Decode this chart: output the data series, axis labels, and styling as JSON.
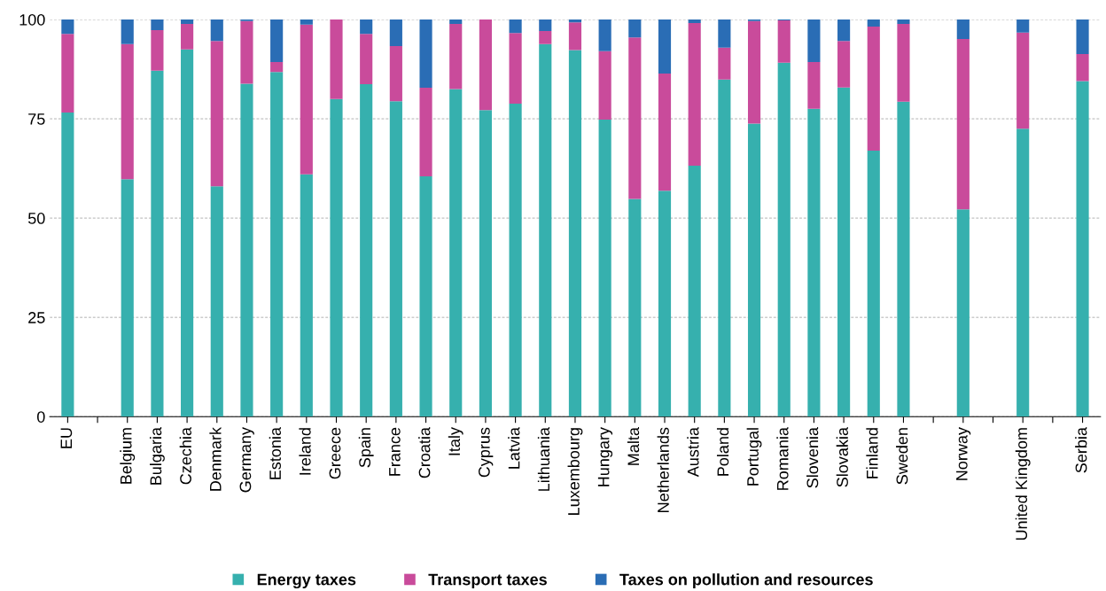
{
  "chart_data": {
    "type": "bar",
    "stacked": true,
    "categories": [
      "EU",
      null,
      "Belgium",
      "Bulgaria",
      "Czechia",
      "Denmark",
      "Germany",
      "Estonia",
      "Ireland",
      "Greece",
      "Spain",
      "France",
      "Croatia",
      "Italy",
      "Cyprus",
      "Latvia",
      "Lithuania",
      "Luxembourg",
      "Hungary",
      "Malta",
      "Netherlands",
      "Austria",
      "Poland",
      "Portugal",
      "Romania",
      "Slovenia",
      "Slovakia",
      "Finland",
      "Sweden",
      null,
      "Norway",
      null,
      "United Kingdom",
      null,
      "Serbia"
    ],
    "series": [
      {
        "name": "Energy taxes",
        "color": "#36b0ae",
        "values": [
          76.6,
          null,
          59.8,
          87.1,
          92.5,
          58.0,
          83.8,
          86.8,
          61.0,
          80.0,
          83.7,
          79.4,
          60.5,
          82.5,
          77.2,
          78.8,
          93.8,
          92.3,
          74.8,
          54.8,
          56.9,
          63.2,
          84.9,
          73.8,
          89.1,
          77.5,
          82.9,
          67.0,
          79.3,
          null,
          52.2,
          null,
          72.5,
          null,
          84.5
        ]
      },
      {
        "name": "Transport taxes",
        "color": "#c94b9b",
        "values": [
          19.8,
          null,
          34.0,
          10.2,
          6.4,
          36.6,
          15.8,
          2.5,
          37.7,
          20.0,
          12.7,
          13.9,
          22.3,
          16.4,
          22.8,
          17.8,
          3.3,
          7.0,
          17.2,
          40.7,
          29.5,
          35.9,
          8.0,
          25.8,
          10.7,
          11.8,
          11.7,
          31.2,
          19.6,
          null,
          42.9,
          null,
          24.2,
          null,
          6.8
        ]
      },
      {
        "name": "Taxes on pollution and resources",
        "color": "#2a6db5",
        "values": [
          3.6,
          null,
          6.2,
          2.7,
          1.1,
          5.4,
          0.4,
          10.7,
          1.3,
          0.0,
          3.6,
          6.7,
          17.2,
          1.1,
          0.0,
          3.4,
          2.9,
          0.7,
          8.0,
          4.5,
          13.6,
          0.9,
          7.1,
          0.4,
          0.2,
          10.7,
          5.4,
          1.8,
          1.1,
          null,
          4.9,
          null,
          3.3,
          null,
          8.7
        ]
      }
    ],
    "ylim": [
      0,
      100
    ],
    "yticks": [
      0,
      25,
      50,
      75,
      100
    ],
    "grid": "y",
    "legend": "bottom"
  }
}
